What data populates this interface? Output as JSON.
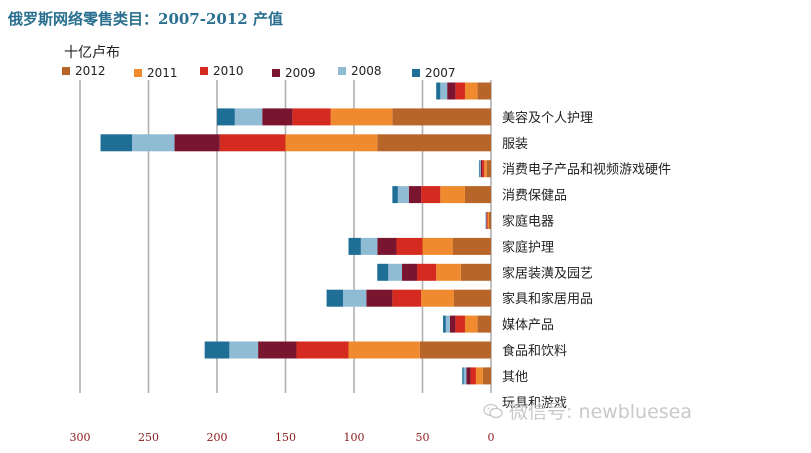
{
  "page_title": "俄罗斯网络零售类目：2007-2012 产值",
  "colors": {
    "2012": "#b8652a",
    "2011": "#ef8a2e",
    "2010": "#d42a1f",
    "2009": "#7a1530",
    "2008": "#8fbcd4",
    "2007": "#1f6e96",
    "gridline": "#b0b0b0",
    "tick_label": "#8b1c1c",
    "title": "#2a6f8f"
  },
  "watermark": {
    "icon": "wechat-icon",
    "text": "微信号: newbluesea"
  },
  "chart_data": {
    "type": "bar",
    "orientation": "horizontal-stacked",
    "title": "俄罗斯网络零售类目：2007-2012 产值",
    "unit_label": "十亿卢布",
    "xlabel": "",
    "ylabel": "",
    "xlim": [
      0,
      300
    ],
    "x_direction": "reversed",
    "x_ticks": [
      300,
      250,
      200,
      150,
      100,
      50,
      0
    ],
    "grid": true,
    "legend_position": "top",
    "categories": [
      "",
      "美容及个人护理",
      "服装",
      "消费电子产品和视频游戏硬件",
      "消费保健品",
      "家庭电器",
      "家庭护理",
      "家居装潢及园艺",
      "家具和家居用品",
      "媒体产品",
      "食品和饮料",
      "其他",
      "玩具和游戏"
    ],
    "series": [
      {
        "name": "2012",
        "values": [
          10,
          72,
          83,
          3,
          19,
          1.5,
          28,
          22,
          27,
          10,
          52,
          6,
          0
        ]
      },
      {
        "name": "2011",
        "values": [
          9,
          45,
          67,
          2,
          18,
          1.0,
          22,
          18,
          24,
          9,
          52,
          5,
          0
        ]
      },
      {
        "name": "2010",
        "values": [
          7,
          28,
          48,
          1.5,
          14,
          0.5,
          19,
          14,
          21,
          7,
          38,
          4,
          0
        ]
      },
      {
        "name": "2009",
        "values": [
          6,
          22,
          33,
          1,
          9,
          0.5,
          14,
          11,
          19,
          4,
          28,
          3,
          0
        ]
      },
      {
        "name": "2008",
        "values": [
          5,
          20,
          31,
          0.8,
          8,
          0.3,
          12,
          10,
          17,
          3,
          21,
          2,
          0
        ]
      },
      {
        "name": "2007",
        "values": [
          3,
          13,
          23,
          0.5,
          4,
          0.2,
          9,
          8,
          12,
          2,
          18,
          1,
          0
        ]
      }
    ]
  }
}
